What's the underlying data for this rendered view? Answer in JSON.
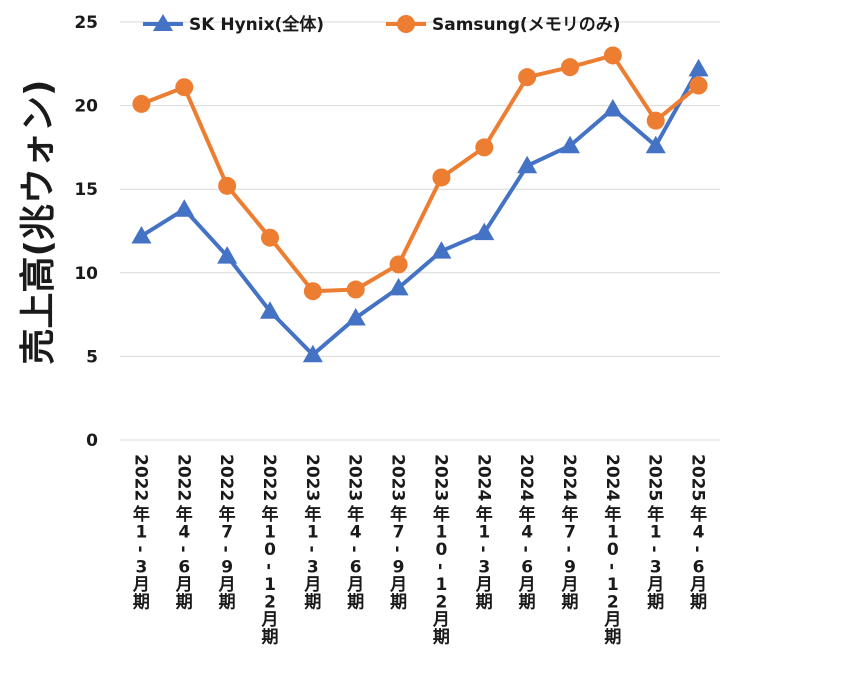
{
  "chart_data": {
    "type": "line",
    "ylabel": "売上高(兆ウォン)",
    "ylim": [
      0,
      25
    ],
    "yticks": [
      0,
      5,
      10,
      15,
      20,
      25
    ],
    "grid": true,
    "legend_position": "top",
    "categories": [
      "2022年1-3月期",
      "2022年4-6月期",
      "2022年7-9月期",
      "2022年10-12月期",
      "2023年1-3月期",
      "2023年4-6月期",
      "2023年7-9月期",
      "2023年10-12月期",
      "2024年1-3月期",
      "2024年4-6月期",
      "2024年7-9月期",
      "2024年10-12月期",
      "2025年1-3月期",
      "2025年4-6月期"
    ],
    "series": [
      {
        "name": "SK Hynix(全体)",
        "color": "#4472C4",
        "marker": "triangle",
        "values": [
          12.2,
          13.8,
          11.0,
          7.7,
          5.1,
          7.3,
          9.1,
          11.3,
          12.4,
          16.4,
          17.6,
          19.8,
          17.6,
          22.2
        ]
      },
      {
        "name": "Samsung(メモリのみ)",
        "color": "#ED7D31",
        "marker": "circle",
        "values": [
          20.1,
          21.1,
          15.2,
          12.1,
          8.9,
          9.0,
          10.5,
          15.7,
          17.5,
          21.7,
          22.3,
          23.0,
          19.1,
          21.2
        ]
      }
    ]
  }
}
